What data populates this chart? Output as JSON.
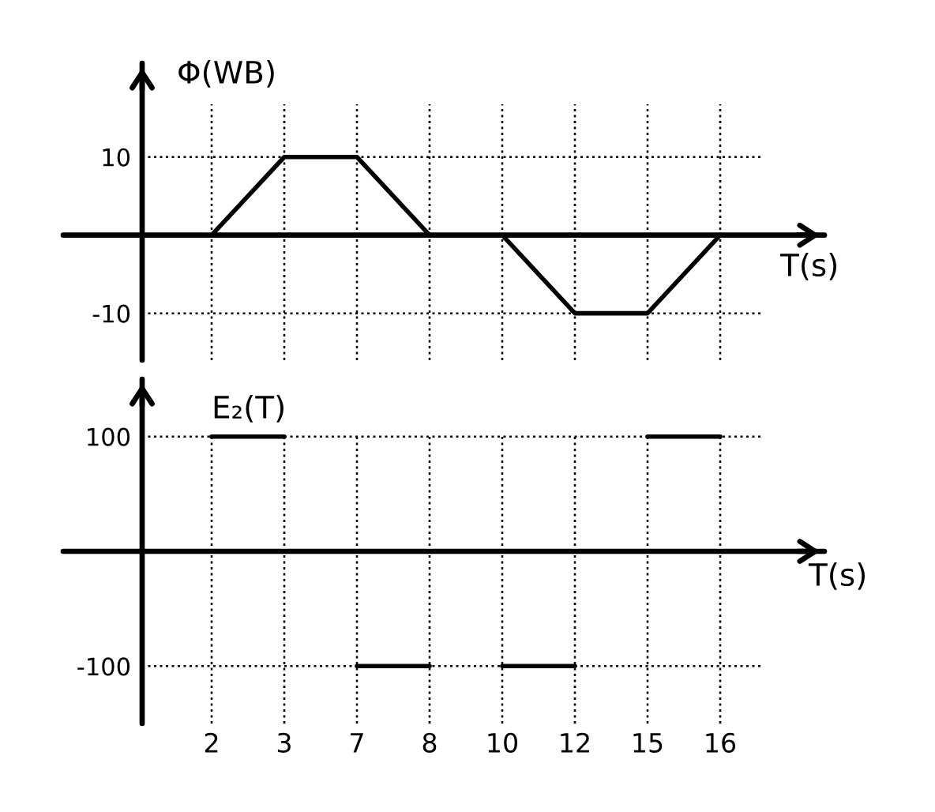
{
  "chart_data": [
    {
      "type": "line",
      "ylabel": "Φ(WB)",
      "xlabel": "T(s)",
      "categories": [
        "2",
        "3",
        "7",
        "8",
        "10",
        "12",
        "15",
        "16"
      ],
      "series": [
        {
          "color": "#000000",
          "values": [
            0,
            10,
            10,
            0,
            0,
            -10,
            -10,
            0
          ]
        }
      ],
      "ylim": [
        -16,
        22
      ],
      "yticks": [
        -10,
        10
      ],
      "grid": true,
      "tick_labels": "y"
    },
    {
      "type": "line",
      "ylabel": "E₂(T)",
      "xlabel": "T(s)",
      "categories": [
        "2",
        "3",
        "7",
        "8",
        "10",
        "12",
        "15",
        "16"
      ],
      "series": [
        {
          "color": "#000000",
          "values": [
            100,
            100,
            null,
            null,
            null,
            null,
            null,
            null
          ]
        },
        {
          "color": "#000000",
          "values": [
            null,
            null,
            -100,
            -100,
            null,
            null,
            null,
            null
          ]
        },
        {
          "color": "#000000",
          "values": [
            null,
            null,
            null,
            null,
            -100,
            -100,
            null,
            null
          ]
        },
        {
          "color": "#000000",
          "values": [
            null,
            null,
            null,
            null,
            null,
            null,
            100,
            100
          ]
        }
      ],
      "ylim": [
        -150,
        150
      ],
      "yticks": [
        -100,
        100
      ],
      "grid": true
    }
  ]
}
